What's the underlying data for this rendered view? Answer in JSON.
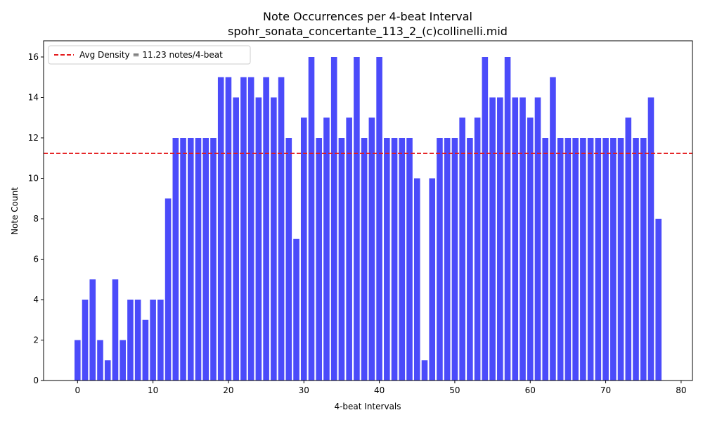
{
  "chart_data": {
    "type": "bar",
    "title": "Note Occurrences per 4-beat Interval",
    "subtitle": "spohr_sonata_concertante_113_2_(c)collinelli.mid",
    "xlabel": "4-beat Intervals",
    "ylabel": "Note Count",
    "xlim": [
      -4.5,
      81.5
    ],
    "ylim": [
      0,
      16.8
    ],
    "xticks": [
      0,
      10,
      20,
      30,
      40,
      50,
      60,
      70,
      80
    ],
    "yticks": [
      0,
      2,
      4,
      6,
      8,
      10,
      12,
      14,
      16
    ],
    "grid": false,
    "bar_color": "#4b4bfa",
    "average_line": {
      "value": 11.23,
      "color": "#e41a1c",
      "label": "Avg Density = 11.23 notes/4-beat"
    },
    "legend_position": "top-left",
    "x": [
      0,
      1,
      2,
      3,
      4,
      5,
      6,
      7,
      8,
      9,
      10,
      11,
      12,
      13,
      14,
      15,
      16,
      17,
      18,
      19,
      20,
      21,
      22,
      23,
      24,
      25,
      26,
      27,
      28,
      29,
      30,
      31,
      32,
      33,
      34,
      35,
      36,
      37,
      38,
      39,
      40,
      41,
      42,
      43,
      44,
      45,
      46,
      47,
      48,
      49,
      50,
      51,
      52,
      53,
      54,
      55,
      56,
      57,
      58,
      59,
      60,
      61,
      62,
      63,
      64,
      65,
      66,
      67,
      68,
      69,
      70,
      71,
      72,
      73,
      74,
      75,
      76,
      77
    ],
    "values": [
      2,
      4,
      5,
      2,
      1,
      5,
      2,
      4,
      4,
      3,
      4,
      4,
      9,
      12,
      12,
      12,
      12,
      12,
      12,
      15,
      15,
      14,
      15,
      15,
      14,
      15,
      14,
      15,
      12,
      7,
      13,
      16,
      12,
      13,
      16,
      12,
      13,
      16,
      12,
      13,
      16,
      12,
      12,
      12,
      12,
      10,
      1,
      10,
      12,
      12,
      12,
      13,
      12,
      13,
      16,
      14,
      14,
      16,
      14,
      14,
      13,
      14,
      12,
      15,
      12,
      12,
      12,
      12,
      12,
      12,
      12,
      12,
      12,
      13,
      12,
      12,
      14,
      8
    ]
  }
}
